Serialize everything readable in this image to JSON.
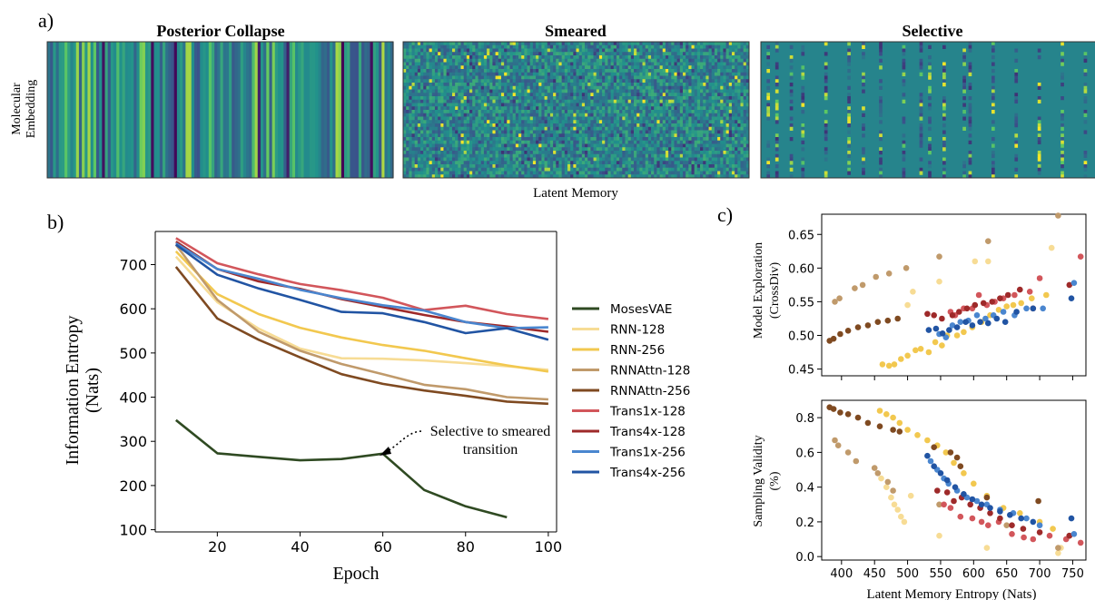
{
  "panel_labels": {
    "a": "a)",
    "b": "b)",
    "c": "c)"
  },
  "panel_a": {
    "titles": [
      "Posterior Collapse",
      "Smeared",
      "Selective"
    ],
    "ylabel_line1": "Molecular",
    "ylabel_line2": "Embedding",
    "xlabel": "Latent Memory"
  },
  "annotation": {
    "line1": "Selective to smeared",
    "line2": "transition"
  },
  "colors": {
    "MosesVAE": "#2f4a22",
    "RNN-128": "#f7dc95",
    "RNN-256": "#f2c84f",
    "RNNAttn-128": "#c09a6b",
    "RNNAttn-256": "#7f4a21",
    "Trans1x-128": "#d2565b",
    "Trans4x-128": "#9e2a2a",
    "Trans1x-256": "#4a86cf",
    "Trans4x-256": "#2154a3"
  },
  "chart_data": [
    {
      "type": "heatmap",
      "title": "Posterior Collapse",
      "xlabel": "Latent Memory",
      "ylabel": "Molecular Embedding",
      "pattern": "vertical stripes (identical across rows)"
    },
    {
      "type": "heatmap",
      "title": "Smeared",
      "xlabel": "Latent Memory",
      "ylabel": "Molecular Embedding",
      "pattern": "noise across all cells"
    },
    {
      "type": "heatmap",
      "title": "Selective",
      "xlabel": "Latent Memory",
      "ylabel": "Molecular Embedding",
      "pattern": "few active columns on uniform background"
    },
    {
      "type": "line",
      "xlabel": "Epoch",
      "ylabel": "Information Entropy (Nats)",
      "xlim": [
        5,
        102
      ],
      "ylim": [
        95,
        775
      ],
      "xticks": [
        20,
        40,
        60,
        80,
        100
      ],
      "yticks": [
        100,
        200,
        300,
        400,
        500,
        600,
        700
      ],
      "legend_position": "right",
      "grid": false,
      "series": [
        {
          "name": "MosesVAE",
          "x": [
            10,
            20,
            30,
            40,
            50,
            60,
            70,
            80,
            90
          ],
          "values": [
            348,
            273,
            265,
            257,
            260,
            272,
            190,
            153,
            128
          ]
        },
        {
          "name": "RNN-128",
          "x": [
            10,
            20,
            30,
            40,
            50,
            60,
            70,
            80,
            90,
            100
          ],
          "values": [
            718,
            615,
            555,
            510,
            488,
            487,
            483,
            477,
            470,
            462
          ]
        },
        {
          "name": "RNN-256",
          "x": [
            10,
            20,
            30,
            40,
            50,
            60,
            70,
            80,
            90,
            100
          ],
          "values": [
            730,
            633,
            588,
            557,
            535,
            518,
            505,
            488,
            472,
            458
          ]
        },
        {
          "name": "RNNAttn-128",
          "x": [
            10,
            20,
            30,
            40,
            50,
            60,
            70,
            80,
            90,
            100
          ],
          "values": [
            745,
            620,
            548,
            505,
            475,
            452,
            428,
            418,
            400,
            395
          ]
        },
        {
          "name": "RNNAttn-256",
          "x": [
            10,
            20,
            30,
            40,
            50,
            60,
            70,
            80,
            90,
            100
          ],
          "values": [
            695,
            578,
            530,
            490,
            452,
            430,
            415,
            403,
            390,
            385
          ]
        },
        {
          "name": "Trans1x-128",
          "x": [
            10,
            20,
            30,
            40,
            50,
            60,
            70,
            80,
            90,
            100
          ],
          "values": [
            760,
            703,
            678,
            656,
            642,
            625,
            597,
            607,
            588,
            577
          ]
        },
        {
          "name": "Trans4x-128",
          "x": [
            10,
            20,
            30,
            40,
            50,
            60,
            70,
            80,
            90,
            100
          ],
          "values": [
            752,
            690,
            662,
            645,
            622,
            604,
            586,
            570,
            560,
            548
          ]
        },
        {
          "name": "Trans1x-256",
          "x": [
            10,
            20,
            30,
            40,
            50,
            60,
            70,
            80,
            90,
            100
          ],
          "values": [
            748,
            690,
            668,
            643,
            624,
            608,
            596,
            570,
            556,
            558
          ]
        },
        {
          "name": "Trans4x-256",
          "x": [
            10,
            20,
            30,
            40,
            50,
            60,
            70,
            80,
            90,
            100
          ],
          "values": [
            745,
            677,
            646,
            620,
            593,
            590,
            570,
            545,
            556,
            530
          ]
        }
      ]
    },
    {
      "type": "scatter",
      "xlabel": "Latent Memory Entropy (Nats)",
      "ylabel": "Model Exploration (CrossDiv)",
      "xlim": [
        370,
        770
      ],
      "ylim": [
        0.44,
        0.68
      ],
      "yticks": [
        0.45,
        0.5,
        0.55,
        0.6,
        0.65
      ],
      "series": [
        {
          "name": "RNN-128",
          "x": [
            500,
            508,
            548,
            602,
            622,
            718
          ],
          "values": [
            0.545,
            0.565,
            0.58,
            0.61,
            0.61,
            0.63
          ]
        },
        {
          "name": "RNN-256",
          "x": [
            462,
            472,
            480,
            490,
            500,
            512,
            520,
            532,
            542,
            552,
            560,
            575,
            585,
            598,
            612,
            625,
            638,
            650,
            660,
            672,
            688,
            710
          ],
          "values": [
            0.457,
            0.455,
            0.457,
            0.465,
            0.47,
            0.478,
            0.48,
            0.475,
            0.49,
            0.485,
            0.5,
            0.5,
            0.505,
            0.512,
            0.52,
            0.53,
            0.538,
            0.543,
            0.545,
            0.548,
            0.555,
            0.56
          ]
        },
        {
          "name": "RNNAttn-128",
          "x": [
            390,
            397,
            420,
            432,
            452,
            472,
            498,
            548,
            622,
            728
          ],
          "values": [
            0.55,
            0.555,
            0.57,
            0.575,
            0.587,
            0.592,
            0.6,
            0.617,
            0.64,
            0.678
          ]
        },
        {
          "name": "RNNAttn-256",
          "x": [
            382,
            388,
            398,
            410,
            425,
            440,
            455,
            470,
            485
          ],
          "values": [
            0.492,
            0.495,
            0.502,
            0.507,
            0.512,
            0.515,
            0.52,
            0.522,
            0.525
          ]
        },
        {
          "name": "Trans1x-128",
          "x": [
            565,
            572,
            585,
            598,
            608,
            620,
            632,
            645,
            662,
            685,
            700,
            762
          ],
          "values": [
            0.535,
            0.53,
            0.54,
            0.54,
            0.56,
            0.545,
            0.55,
            0.555,
            0.56,
            0.565,
            0.585,
            0.617
          ]
        },
        {
          "name": "Trans4x-128",
          "x": [
            530,
            540,
            552,
            568,
            578,
            590,
            602,
            615,
            628,
            640,
            652,
            670,
            690,
            745
          ],
          "values": [
            0.532,
            0.53,
            0.525,
            0.53,
            0.535,
            0.54,
            0.545,
            0.548,
            0.55,
            0.555,
            0.56,
            0.568,
            0.54,
            0.575
          ]
        },
        {
          "name": "Trans1x-256",
          "x": [
            548,
            558,
            568,
            580,
            592,
            605,
            618,
            630,
            645,
            662,
            680,
            705,
            752
          ],
          "values": [
            0.502,
            0.497,
            0.515,
            0.52,
            0.522,
            0.53,
            0.525,
            0.53,
            0.535,
            0.53,
            0.54,
            0.54,
            0.578
          ]
        },
        {
          "name": "Trans4x-256",
          "x": [
            532,
            543,
            553,
            563,
            575,
            588,
            598,
            610,
            622,
            635,
            648,
            665,
            690,
            748
          ],
          "values": [
            0.508,
            0.51,
            0.503,
            0.508,
            0.512,
            0.52,
            0.515,
            0.52,
            0.518,
            0.525,
            0.52,
            0.535,
            0.54,
            0.555
          ]
        }
      ]
    },
    {
      "type": "scatter",
      "xlabel": "Latent Memory Entropy (Nats)",
      "ylabel": "Sampling Validity (%)",
      "xlim": [
        370,
        770
      ],
      "ylim": [
        -0.02,
        0.9
      ],
      "xticks": [
        400,
        450,
        500,
        550,
        600,
        650,
        700,
        750
      ],
      "yticks": [
        0.0,
        0.2,
        0.4,
        0.6,
        0.8
      ],
      "series": [
        {
          "name": "RNN-128",
          "x": [
            460,
            468,
            475,
            480,
            485,
            490,
            495,
            505,
            548,
            620,
            728,
            732
          ],
          "values": [
            0.45,
            0.4,
            0.34,
            0.3,
            0.27,
            0.23,
            0.2,
            0.35,
            0.12,
            0.05,
            0.02,
            0.05
          ]
        },
        {
          "name": "RNN-256",
          "x": [
            458,
            468,
            478,
            488,
            500,
            515,
            530,
            545,
            558,
            570,
            585,
            600,
            620,
            645,
            670,
            700,
            720
          ],
          "values": [
            0.84,
            0.82,
            0.8,
            0.77,
            0.73,
            0.7,
            0.67,
            0.64,
            0.6,
            0.54,
            0.48,
            0.42,
            0.35,
            0.28,
            0.25,
            0.2,
            0.16
          ]
        },
        {
          "name": "RNNAttn-128",
          "x": [
            390,
            395,
            410,
            422,
            450,
            455,
            470,
            478,
            548,
            650,
            728
          ],
          "values": [
            0.67,
            0.64,
            0.6,
            0.55,
            0.51,
            0.48,
            0.43,
            0.38,
            0.3,
            0.18,
            0.05
          ]
        },
        {
          "name": "RNNAttn-256",
          "x": [
            382,
            388,
            398,
            410,
            425,
            440,
            458,
            478,
            488,
            540,
            565,
            575,
            580,
            620,
            698,
            745
          ],
          "values": [
            0.86,
            0.85,
            0.83,
            0.82,
            0.8,
            0.77,
            0.75,
            0.73,
            0.72,
            0.63,
            0.6,
            0.57,
            0.52,
            0.34,
            0.32,
            0.12
          ]
        },
        {
          "name": "Trans1x-128",
          "x": [
            555,
            565,
            580,
            598,
            612,
            622,
            638,
            658,
            676,
            690,
            715,
            740,
            762
          ],
          "values": [
            0.3,
            0.28,
            0.23,
            0.22,
            0.2,
            0.18,
            0.2,
            0.13,
            0.11,
            0.1,
            0.12,
            0.1,
            0.08
          ]
        },
        {
          "name": "Trans4x-128",
          "x": [
            545,
            560,
            570,
            582,
            595,
            610,
            625,
            640,
            658,
            675,
            700,
            745
          ],
          "values": [
            0.38,
            0.37,
            0.32,
            0.34,
            0.3,
            0.28,
            0.25,
            0.22,
            0.18,
            0.16,
            0.14,
            0.12
          ]
        },
        {
          "name": "Trans1x-256",
          "x": [
            535,
            545,
            555,
            562,
            575,
            590,
            605,
            620,
            640,
            660,
            680,
            700,
            752
          ],
          "values": [
            0.55,
            0.5,
            0.45,
            0.42,
            0.38,
            0.34,
            0.32,
            0.3,
            0.27,
            0.25,
            0.22,
            0.18,
            0.13
          ]
        },
        {
          "name": "Trans4x-256",
          "x": [
            530,
            540,
            550,
            560,
            572,
            585,
            598,
            612,
            625,
            640,
            655,
            672,
            690,
            748
          ],
          "values": [
            0.58,
            0.52,
            0.48,
            0.44,
            0.4,
            0.36,
            0.33,
            0.3,
            0.28,
            0.26,
            0.24,
            0.22,
            0.2,
            0.22
          ]
        }
      ]
    }
  ]
}
